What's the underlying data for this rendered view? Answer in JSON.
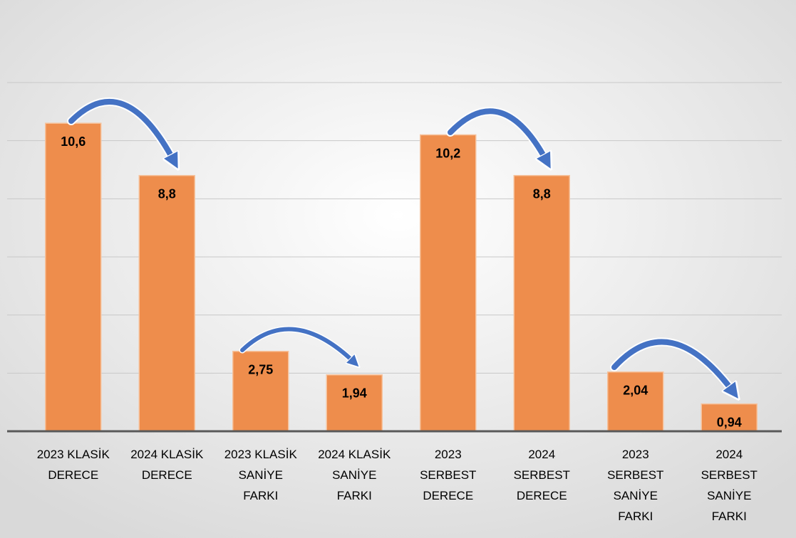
{
  "chart_data": {
    "type": "bar",
    "categories": [
      "2023 KLASİK DERECE",
      "2024 KLASİK DERECE",
      "2023 KLASİK SANİYE FARKI",
      "2024 KLASİK SANİYE FARKI",
      "2023 SERBEST DERECE",
      "2024 SERBEST DERECE",
      "2023 SERBEST SANİYE FARKI",
      "2024 SERBEST SANİYE FARKI"
    ],
    "values": [
      10.6,
      8.8,
      2.75,
      1.94,
      10.2,
      8.8,
      2.04,
      0.94
    ],
    "value_labels": [
      "10,6",
      "8,8",
      "2,75",
      "1,94",
      "10,2",
      "8,8",
      "2,04",
      "0,94"
    ],
    "color": "#ee8d4c",
    "ylim": [
      0,
      12
    ],
    "yticks": [
      0,
      2,
      4,
      6,
      8,
      10,
      12
    ],
    "grid": true
  }
}
